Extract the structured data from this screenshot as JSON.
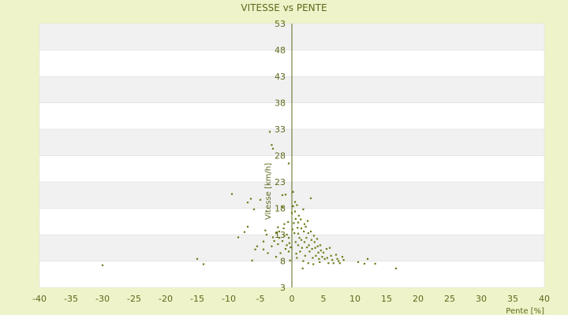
{
  "chart_data": {
    "type": "scatter",
    "title": "VITESSE vs PENTE",
    "xlabel": "Pente [%]",
    "ylabel": "Vitesse [km/h]",
    "xlim": [
      -40,
      40
    ],
    "ylim": [
      3,
      53
    ],
    "x_ticks": [
      -40,
      -35,
      -30,
      -25,
      -20,
      -15,
      -10,
      -5,
      0,
      5,
      10,
      15,
      20,
      25,
      30,
      35,
      40
    ],
    "y_ticks": [
      3,
      8,
      13,
      18,
      23,
      28,
      33,
      38,
      43,
      48,
      53
    ],
    "grid": "horizontal bands",
    "legend": "none",
    "colors": {
      "background": "#eef3c9",
      "plot_band_light": "#ffffff",
      "plot_band_dark": "#f1f1f1",
      "axis": "#556b1c",
      "point": "#6b7d18",
      "text": "#5c6a1c"
    },
    "points": [
      [
        -30,
        7.2
      ],
      [
        -15,
        8.4
      ],
      [
        -14,
        7.4
      ],
      [
        -9.5,
        20.7
      ],
      [
        -8.5,
        12.5
      ],
      [
        -7.5,
        13.5
      ],
      [
        -7,
        19.1
      ],
      [
        -7,
        14.5
      ],
      [
        -6.5,
        19.8
      ],
      [
        -6,
        17.8
      ],
      [
        -6.3,
        8.1
      ],
      [
        -5.5,
        10.8
      ],
      [
        -5.8,
        10.2
      ],
      [
        -5,
        19.6
      ],
      [
        -4.5,
        11.7
      ],
      [
        -4.5,
        10.2
      ],
      [
        -4.2,
        13.8
      ],
      [
        -4,
        13.0
      ],
      [
        -3.8,
        9.5
      ],
      [
        -3.5,
        32.5
      ],
      [
        -3.2,
        30.0
      ],
      [
        -3,
        29.3
      ],
      [
        -3,
        12.5
      ],
      [
        -2.8,
        11.8
      ],
      [
        -2.5,
        13.3
      ],
      [
        -2.2,
        11.2
      ],
      [
        -2,
        13.6
      ],
      [
        -2.5,
        8.8
      ],
      [
        -2,
        12.4
      ],
      [
        -1.8,
        9.5
      ],
      [
        -1.5,
        20.5
      ],
      [
        -1.5,
        18.2
      ],
      [
        -1.5,
        11.8
      ],
      [
        -1.3,
        14.2
      ],
      [
        -1.2,
        12.8
      ],
      [
        -1,
        20.6
      ],
      [
        -1,
        10.3
      ],
      [
        -0.8,
        13.0
      ],
      [
        -0.8,
        11.0
      ],
      [
        -0.6,
        15.4
      ],
      [
        -0.5,
        26.5
      ],
      [
        -0.5,
        12.4
      ],
      [
        -0.5,
        9.8
      ],
      [
        -0.3,
        8.1
      ],
      [
        -0.2,
        10.6
      ],
      [
        0,
        17.1
      ],
      [
        0.2,
        21.1
      ],
      [
        0.2,
        18.4
      ],
      [
        0.3,
        15.2
      ],
      [
        0.4,
        13.3
      ],
      [
        0.5,
        19.2
      ],
      [
        0.5,
        17.4
      ],
      [
        0.6,
        16.0
      ],
      [
        0.6,
        11.6
      ],
      [
        0.7,
        9.4
      ],
      [
        0.8,
        18.6
      ],
      [
        0.9,
        14.3
      ],
      [
        1,
        15.3
      ],
      [
        1,
        13.2
      ],
      [
        1,
        11.0
      ],
      [
        1.1,
        16.6
      ],
      [
        1.2,
        12.4
      ],
      [
        1.3,
        9.8
      ],
      [
        1.4,
        15.9
      ],
      [
        1.5,
        14.2
      ],
      [
        1.5,
        12.0
      ],
      [
        1.6,
        10.5
      ],
      [
        1.7,
        6.6
      ],
      [
        1.8,
        17.8
      ],
      [
        1.9,
        13.6
      ],
      [
        2,
        15.0
      ],
      [
        2,
        11.6
      ],
      [
        2.1,
        9.0
      ],
      [
        2.2,
        14.5
      ],
      [
        2.3,
        12.4
      ],
      [
        2.4,
        10.6
      ],
      [
        2.5,
        15.6
      ],
      [
        2.6,
        13.3
      ],
      [
        2.7,
        11.0
      ],
      [
        2.8,
        9.8
      ],
      [
        3,
        19.9
      ],
      [
        3,
        13.6
      ],
      [
        3.1,
        12.0
      ],
      [
        3.2,
        10.3
      ],
      [
        3.3,
        8.6
      ],
      [
        3.5,
        12.8
      ],
      [
        3.6,
        11.6
      ],
      [
        3.7,
        10.5
      ],
      [
        3.8,
        9.0
      ],
      [
        4,
        12.2
      ],
      [
        4.1,
        10.8
      ],
      [
        4.2,
        9.6
      ],
      [
        4.3,
        8.4
      ],
      [
        4.5,
        11.0
      ],
      [
        4.6,
        10.0
      ],
      [
        4.8,
        8.8
      ],
      [
        5,
        9.6
      ],
      [
        5.2,
        8.4
      ],
      [
        5.5,
        10.3
      ],
      [
        5.6,
        8.6
      ],
      [
        5.8,
        7.6
      ],
      [
        6,
        10.5
      ],
      [
        6.2,
        9.0
      ],
      [
        6.4,
        8.2
      ],
      [
        6.6,
        7.6
      ],
      [
        7,
        9.2
      ],
      [
        7.2,
        8.4
      ],
      [
        7.4,
        8.0
      ],
      [
        7.6,
        7.6
      ],
      [
        8,
        8.8
      ],
      [
        8.2,
        8.2
      ],
      [
        10.5,
        7.8
      ],
      [
        11.5,
        7.5
      ],
      [
        12,
        8.4
      ],
      [
        13.2,
        7.5
      ],
      [
        16.5,
        6.6
      ],
      [
        -1.2,
        15.0
      ],
      [
        -2.2,
        14.4
      ],
      [
        -3.2,
        10.8
      ],
      [
        0.1,
        14.0
      ],
      [
        1.8,
        8.0
      ],
      [
        2.6,
        7.6
      ],
      [
        3.4,
        7.4
      ],
      [
        4.4,
        7.8
      ],
      [
        0.8,
        8.6
      ],
      [
        -0.4,
        11.4
      ]
    ]
  }
}
